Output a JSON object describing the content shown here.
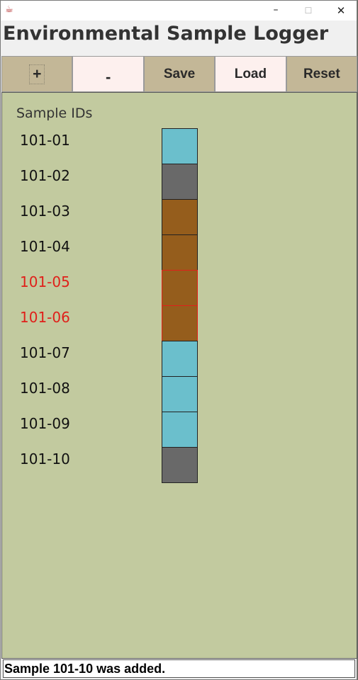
{
  "window": {
    "app_icon": "java-cup-icon",
    "controls": {
      "minimize_glyph": "–",
      "maximize_glyph": "☐",
      "close_glyph": "✕"
    }
  },
  "app_title": "Environmental Sample Logger",
  "toolbar": {
    "add_label": "+",
    "remove_label": "-",
    "save_label": "Save",
    "load_label": "Load",
    "reset_label": "Reset"
  },
  "panel": {
    "heading": "Sample IDs",
    "samples": [
      {
        "id": "101-01",
        "color": "#6bbfcc",
        "flagged": false
      },
      {
        "id": "101-02",
        "color": "#696969",
        "flagged": false
      },
      {
        "id": "101-03",
        "color": "#955d1c",
        "flagged": false
      },
      {
        "id": "101-04",
        "color": "#955d1c",
        "flagged": false
      },
      {
        "id": "101-05",
        "color": "#955d1c",
        "flagged": true
      },
      {
        "id": "101-06",
        "color": "#955d1c",
        "flagged": true
      },
      {
        "id": "101-07",
        "color": "#6bbfcc",
        "flagged": false
      },
      {
        "id": "101-08",
        "color": "#6bbfcc",
        "flagged": false
      },
      {
        "id": "101-09",
        "color": "#6bbfcc",
        "flagged": false
      },
      {
        "id": "101-10",
        "color": "#696969",
        "flagged": false
      }
    ]
  },
  "status": "Sample 101-10 was added.",
  "colors": {
    "panel_bg": "#c2ca9f",
    "button_tan": "#c3b797",
    "button_pink": "#fdf0ee",
    "flag_red": "#e0201a"
  }
}
